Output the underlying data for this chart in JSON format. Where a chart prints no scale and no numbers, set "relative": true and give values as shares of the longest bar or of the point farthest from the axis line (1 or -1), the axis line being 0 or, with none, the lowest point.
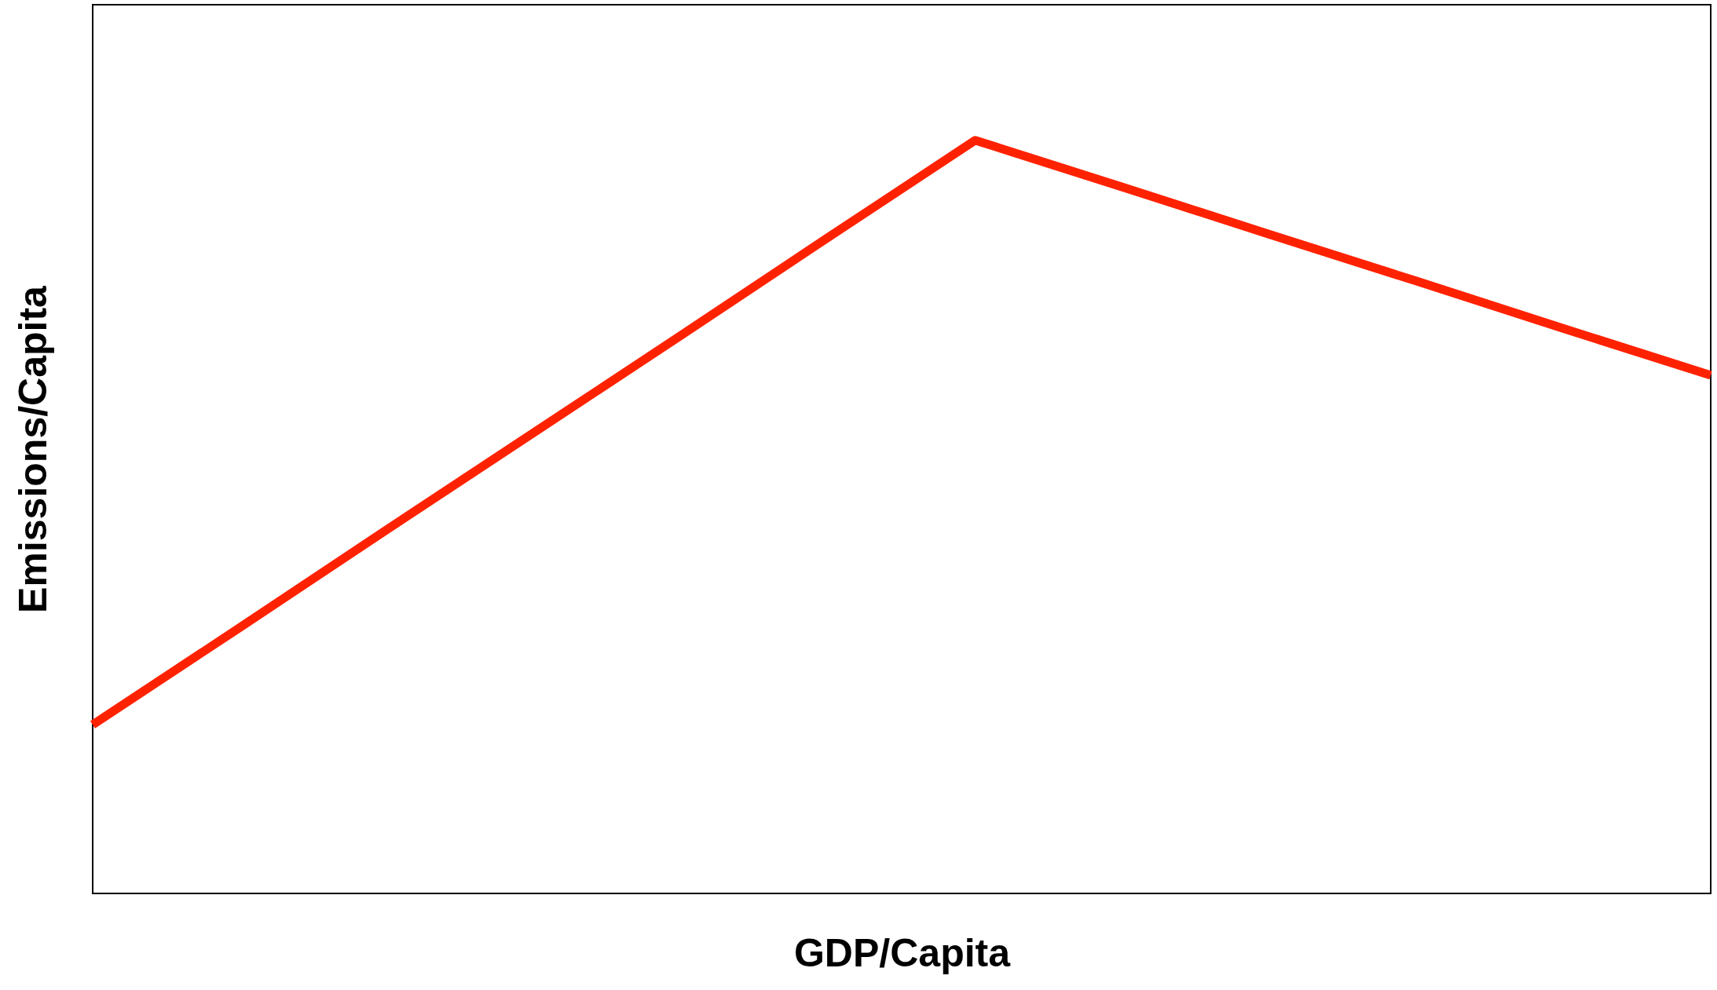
{
  "chart_data": {
    "type": "line",
    "relative": true,
    "xlabel": "GDP/Capita",
    "ylabel": "Emissions/Capita",
    "categories": [
      null,
      null,
      null,
      null,
      null,
      null,
      null,
      null,
      null,
      null,
      null,
      null
    ],
    "grid": false,
    "marker": "none",
    "line_style": "solid",
    "series": [
      {
        "color": "#ff2200",
        "values": [
          0.224,
          0.353,
          0.483,
          0.612,
          0.741,
          0.871,
          1,
          0.938,
          0.875,
          0.813,
          0.75,
          0.688
        ]
      }
    ]
  }
}
